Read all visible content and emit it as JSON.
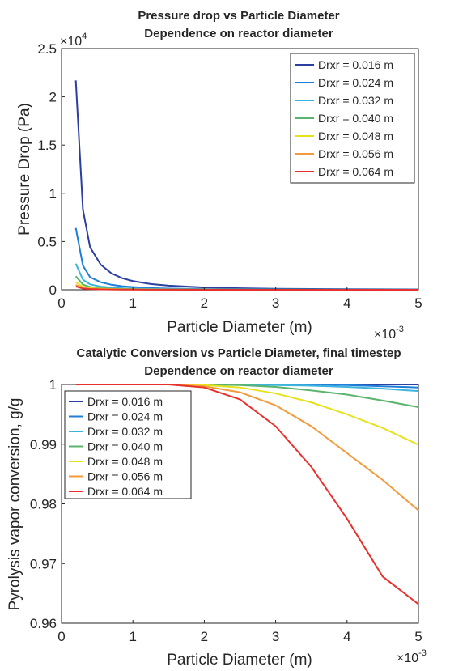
{
  "chart_data": [
    {
      "type": "line",
      "title": "Pressure drop vs Particle Diameter",
      "subtitle": "Dependence on reactor diameter",
      "xlabel": "Particle Diameter (m)",
      "ylabel": "Pressure Drop (Pa)",
      "x_multiplier_label": "×10",
      "x_multiplier_exp": "-3",
      "y_multiplier_label": "×10",
      "y_multiplier_exp": "4",
      "xlim": [
        0,
        5
      ],
      "ylim": [
        0,
        2.5
      ],
      "x_ticks": [
        "0",
        "1",
        "2",
        "3",
        "4",
        "5"
      ],
      "y_ticks": [
        "0",
        "0.5",
        "1",
        "1.5",
        "2",
        "2.5"
      ],
      "x_tick_values": [
        0,
        1,
        2,
        3,
        4,
        5
      ],
      "y_tick_values": [
        0,
        0.5,
        1,
        1.5,
        2,
        2.5
      ],
      "grid": false,
      "legend_position": "top-right",
      "x": [
        0.2,
        0.3,
        0.4,
        0.55,
        0.7,
        0.85,
        1.0,
        1.25,
        1.5,
        2.0,
        2.5,
        3.0,
        3.5,
        4.0,
        4.5,
        5.0
      ],
      "series": [
        {
          "name": "Drxr = 0.016 m",
          "color": "#2b3fa0",
          "values": [
            2.17,
            0.83,
            0.44,
            0.26,
            0.17,
            0.12,
            0.09,
            0.06,
            0.043,
            0.024,
            0.016,
            0.011,
            0.008,
            0.006,
            0.005,
            0.004
          ]
        },
        {
          "name": "Drxr = 0.024 m",
          "color": "#1f7fd8",
          "values": [
            0.64,
            0.25,
            0.13,
            0.078,
            0.052,
            0.037,
            0.028,
            0.018,
            0.013,
            0.008,
            0.005,
            0.004,
            0.003,
            0.002,
            0.002,
            0.001
          ]
        },
        {
          "name": "Drxr = 0.032 m",
          "color": "#3cb4dc",
          "values": [
            0.27,
            0.105,
            0.056,
            0.033,
            0.022,
            0.016,
            0.012,
            0.008,
            0.006,
            0.003,
            0.002,
            0.002,
            0.001,
            0.001,
            0.001,
            0.001
          ]
        },
        {
          "name": "Drxr = 0.040 m",
          "color": "#5ab46e",
          "values": [
            0.14,
            0.054,
            0.029,
            0.017,
            0.011,
            0.008,
            0.006,
            0.004,
            0.003,
            0.002,
            0.001,
            0.001,
            0.001,
            0.0,
            0.0,
            0.0
          ]
        },
        {
          "name": "Drxr = 0.048 m",
          "color": "#e6e21e",
          "values": [
            0.08,
            0.031,
            0.017,
            0.01,
            0.007,
            0.005,
            0.004,
            0.002,
            0.002,
            0.001,
            0.001,
            0.0,
            0.0,
            0.0,
            0.0,
            0.0
          ]
        },
        {
          "name": "Drxr = 0.056 m",
          "color": "#f39a3a",
          "values": [
            0.05,
            0.02,
            0.011,
            0.006,
            0.004,
            0.003,
            0.002,
            0.001,
            0.001,
            0.001,
            0.0,
            0.0,
            0.0,
            0.0,
            0.0,
            0.0
          ]
        },
        {
          "name": "Drxr = 0.064 m",
          "color": "#e8312c",
          "values": [
            0.034,
            0.013,
            0.007,
            0.004,
            0.003,
            0.002,
            0.002,
            0.001,
            0.001,
            0.0,
            0.0,
            0.0,
            0.0,
            0.0,
            0.0,
            0.0
          ]
        }
      ]
    },
    {
      "type": "line",
      "title": "Catalytic Conversion vs Particle Diameter, final timestep",
      "subtitle": "Dependence on reactor diameter",
      "xlabel": "Particle Diameter (m)",
      "ylabel": "Pyrolysis vapor conversion, g/g",
      "x_multiplier_label": "×10",
      "x_multiplier_exp": "-3",
      "xlim": [
        0,
        5
      ],
      "ylim": [
        0.96,
        1.0
      ],
      "x_ticks": [
        "0",
        "1",
        "2",
        "3",
        "4",
        "5"
      ],
      "y_ticks": [
        "0.96",
        "0.97",
        "0.98",
        "0.99",
        "1"
      ],
      "x_tick_values": [
        0,
        1,
        2,
        3,
        4,
        5
      ],
      "y_tick_values": [
        0.96,
        0.97,
        0.98,
        0.99,
        1.0
      ],
      "grid": false,
      "legend_position": "top-left",
      "x": [
        0.2,
        0.5,
        1.0,
        1.5,
        2.0,
        2.5,
        3.0,
        3.5,
        4.0,
        4.5,
        5.0
      ],
      "series": [
        {
          "name": "Drxr = 0.016 m",
          "color": "#2b3fa0",
          "values": [
            1.0,
            1.0,
            1.0,
            1.0,
            1.0,
            1.0,
            1.0,
            1.0,
            1.0,
            1.0,
            1.0
          ]
        },
        {
          "name": "Drxr = 0.024 m",
          "color": "#1f7fd8",
          "values": [
            1.0,
            1.0,
            1.0,
            1.0,
            1.0,
            1.0,
            1.0,
            1.0,
            0.9999,
            0.9997,
            0.9995
          ]
        },
        {
          "name": "Drxr = 0.032 m",
          "color": "#3cb4dc",
          "values": [
            1.0,
            1.0,
            1.0,
            1.0,
            1.0,
            1.0,
            0.9999,
            0.9998,
            0.9996,
            0.9993,
            0.9989
          ]
        },
        {
          "name": "Drxr = 0.040 m",
          "color": "#5ab46e",
          "values": [
            1.0,
            1.0,
            1.0,
            1.0,
            1.0,
            0.9999,
            0.9996,
            0.999,
            0.9983,
            0.9973,
            0.9962
          ]
        },
        {
          "name": "Drxr = 0.048 m",
          "color": "#e6e21e",
          "values": [
            1.0,
            1.0,
            1.0,
            1.0,
            0.9999,
            0.9995,
            0.9985,
            0.997,
            0.995,
            0.9927,
            0.9899
          ]
        },
        {
          "name": "Drxr = 0.056 m",
          "color": "#f39a3a",
          "values": [
            1.0,
            1.0,
            1.0,
            1.0,
            0.9997,
            0.9987,
            0.9965,
            0.993,
            0.9885,
            0.984,
            0.9789
          ]
        },
        {
          "name": "Drxr = 0.064 m",
          "color": "#e8312c",
          "values": [
            1.0,
            1.0,
            1.0,
            1.0,
            0.9995,
            0.9975,
            0.993,
            0.9862,
            0.9775,
            0.9678,
            0.9632
          ]
        }
      ]
    }
  ]
}
